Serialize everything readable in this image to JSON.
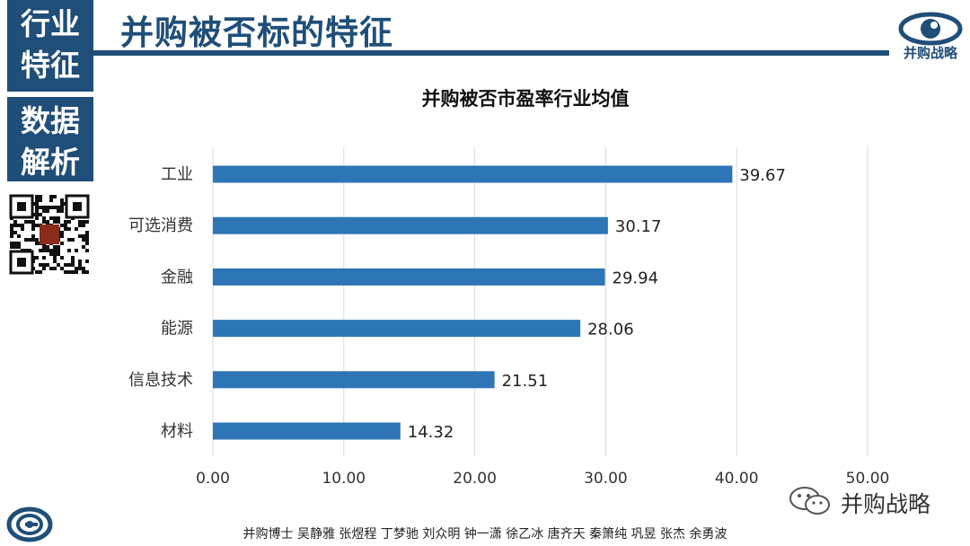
{
  "sidebar": {
    "top_lines": [
      "行业",
      "特征"
    ],
    "bottom_lines": [
      "数据",
      "解析"
    ]
  },
  "header": {
    "title": "并购被否标的特征",
    "brand": "并购战略"
  },
  "colors": {
    "primary": "#1f4e79",
    "bar": "#2e75b6"
  },
  "chart_data": {
    "type": "bar",
    "orientation": "horizontal",
    "title": "并购被否市盈率行业均值",
    "categories": [
      "工业",
      "可选消费",
      "金融",
      "能源",
      "信息技术",
      "材料"
    ],
    "values": [
      39.67,
      30.17,
      29.94,
      28.06,
      21.51,
      14.32
    ],
    "value_labels": [
      "39.67",
      "30.17",
      "29.94",
      "28.06",
      "21.51",
      "14.32"
    ],
    "xlim": [
      0,
      50
    ],
    "xticks": [
      "0.00",
      "10.00",
      "20.00",
      "30.00",
      "40.00",
      "50.00"
    ],
    "grid": true,
    "xlabel": "",
    "ylabel": ""
  },
  "footer": {
    "wechat_text": "并购战略",
    "authors": "并购博士 吴静雅 张煜程 丁梦驰 刘众明 钟一潇 徐乙冰 唐齐天 秦箫纯 巩昱 张杰 余勇波"
  }
}
